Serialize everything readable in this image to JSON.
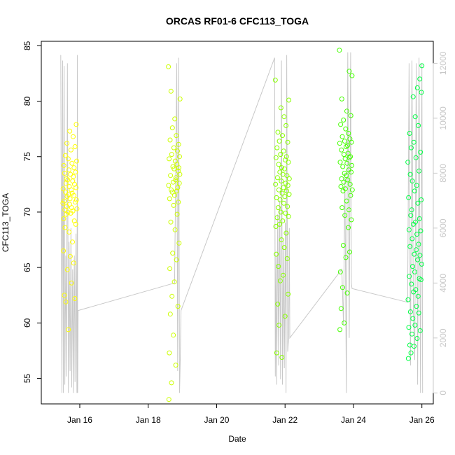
{
  "chart_data": {
    "type": "scatter",
    "title": "ORCAS RF01-6 CFC113_TOGA",
    "xlabel": "Date",
    "ylabel": "CFC113_TOGA",
    "xlim": [
      "2016-01-14T21:00",
      "2016-01-26T08:00"
    ],
    "ylim": [
      52.7,
      85.4
    ],
    "y2lim": [
      -400,
      12800
    ],
    "grid": false,
    "legend": "none",
    "x_ticks": [
      {
        "value": "2016-01-16",
        "label": "Jan 16"
      },
      {
        "value": "2016-01-18",
        "label": "Jan 18"
      },
      {
        "value": "2016-01-20",
        "label": "Jan 20"
      },
      {
        "value": "2016-01-22",
        "label": "Jan 22"
      },
      {
        "value": "2016-01-24",
        "label": "Jan 24"
      },
      {
        "value": "2016-01-26",
        "label": "Jan 26"
      }
    ],
    "y_ticks": [
      55,
      60,
      65,
      70,
      75,
      80,
      85
    ],
    "y2_ticks": [
      0,
      2000,
      4000,
      6000,
      8000,
      10000,
      12000
    ],
    "series": [
      {
        "color": "#ffff00",
        "x": [
          "2016-01-15T12:10",
          "2016-01-15T12:20",
          "2016-01-15T12:30",
          "2016-01-15T12:40",
          "2016-01-15T12:50",
          "2016-01-15T13:00",
          "2016-01-15T13:10",
          "2016-01-15T13:20",
          "2016-01-15T13:30",
          "2016-01-15T13:40",
          "2016-01-15T13:50",
          "2016-01-15T14:00",
          "2016-01-15T14:10",
          "2016-01-15T14:20",
          "2016-01-15T14:30",
          "2016-01-15T14:40",
          "2016-01-15T14:50",
          "2016-01-15T15:00",
          "2016-01-15T15:10",
          "2016-01-15T15:20",
          "2016-01-15T15:30",
          "2016-01-15T15:40",
          "2016-01-15T15:50",
          "2016-01-15T16:00",
          "2016-01-15T16:10",
          "2016-01-15T16:20",
          "2016-01-15T16:30",
          "2016-01-15T16:40",
          "2016-01-15T16:50",
          "2016-01-15T17:00",
          "2016-01-15T17:10",
          "2016-01-15T17:20",
          "2016-01-15T17:30",
          "2016-01-15T17:40",
          "2016-01-15T17:50",
          "2016-01-15T18:00",
          "2016-01-15T18:10",
          "2016-01-15T18:20",
          "2016-01-15T18:30",
          "2016-01-15T18:40",
          "2016-01-15T18:50",
          "2016-01-15T19:00",
          "2016-01-15T19:10",
          "2016-01-15T19:20",
          "2016-01-15T19:30",
          "2016-01-15T19:40",
          "2016-01-15T19:50",
          "2016-01-15T20:00",
          "2016-01-15T20:10",
          "2016-01-15T20:20",
          "2016-01-15T20:30",
          "2016-01-15T20:40",
          "2016-01-15T20:50",
          "2016-01-15T21:00",
          "2016-01-15T21:10",
          "2016-01-15T21:20",
          "2016-01-15T21:30",
          "2016-01-15T21:40",
          "2016-01-15T21:50",
          "2016-01-15T22:00"
        ],
        "y": [
          70.8,
          72.1,
          66.5,
          69.4,
          74.2,
          71.0,
          62.5,
          73.5,
          70.2,
          68.6,
          75.1,
          71.8,
          61.9,
          72.6,
          69.8,
          73.0,
          70.5,
          76.2,
          71.4,
          64.8,
          72.9,
          70.0,
          74.8,
          59.4,
          71.6,
          73.8,
          68.2,
          72.3,
          70.7,
          77.3,
          71.2,
          66.0,
          73.4,
          69.9,
          75.6,
          72.0,
          63.6,
          70.4,
          74.4,
          71.7,
          67.3,
          72.8,
          70.1,
          76.8,
          73.2,
          65.4,
          71.5,
          74.0,
          69.2,
          72.5,
          62.2,
          75.9,
          70.9,
          73.6,
          68.9,
          72.2,
          77.9,
          71.1,
          74.6,
          70.3
        ]
      },
      {
        "color": "#ccff00",
        "x": [
          "2016-01-18T14:10",
          "2016-01-18T14:20",
          "2016-01-18T14:30",
          "2016-01-18T14:40",
          "2016-01-18T14:50",
          "2016-01-18T15:00",
          "2016-01-18T15:10",
          "2016-01-18T15:20",
          "2016-01-18T15:30",
          "2016-01-18T15:40",
          "2016-01-18T15:50",
          "2016-01-18T16:00",
          "2016-01-18T16:10",
          "2016-01-18T16:20",
          "2016-01-18T16:30",
          "2016-01-18T16:40",
          "2016-01-18T16:50",
          "2016-01-18T17:00",
          "2016-01-18T17:10",
          "2016-01-18T17:20",
          "2016-01-18T17:30",
          "2016-01-18T17:40",
          "2016-01-18T17:50",
          "2016-01-18T18:00",
          "2016-01-18T18:10",
          "2016-01-18T18:20",
          "2016-01-18T18:30",
          "2016-01-18T18:40",
          "2016-01-18T18:50",
          "2016-01-18T19:00",
          "2016-01-18T19:10",
          "2016-01-18T19:20",
          "2016-01-18T19:30",
          "2016-01-18T19:40",
          "2016-01-18T19:50",
          "2016-01-18T20:00",
          "2016-01-18T20:10",
          "2016-01-18T20:20",
          "2016-01-18T20:30",
          "2016-01-18T20:40",
          "2016-01-18T20:50",
          "2016-01-18T21:00",
          "2016-01-18T21:10",
          "2016-01-18T21:20",
          "2016-01-18T21:30",
          "2016-01-18T21:40",
          "2016-01-18T21:50",
          "2016-01-18T22:00",
          "2016-01-18T22:10",
          "2016-01-18T22:20"
        ],
        "y": [
          83.1,
          72.4,
          53.1,
          74.8,
          57.3,
          71.2,
          64.9,
          76.5,
          60.8,
          73.3,
          69.1,
          80.9,
          72.0,
          54.6,
          75.2,
          62.4,
          71.8,
          77.6,
          66.3,
          74.1,
          72.7,
          58.9,
          70.6,
          75.8,
          73.9,
          63.7,
          71.5,
          78.4,
          68.4,
          74.6,
          72.9,
          56.2,
          73.1,
          76.9,
          65.7,
          71.9,
          74.3,
          69.8,
          75.5,
          72.2,
          61.5,
          73.7,
          70.9,
          76.1,
          74.0,
          67.2,
          72.6,
          75.0,
          73.4,
          80.2
        ]
      },
      {
        "color": "#88ff00",
        "x": [
          "2016-01-21T17:10",
          "2016-01-21T17:20",
          "2016-01-21T17:30",
          "2016-01-21T17:40",
          "2016-01-21T17:50",
          "2016-01-21T18:00",
          "2016-01-21T18:10",
          "2016-01-21T18:20",
          "2016-01-21T18:30",
          "2016-01-21T18:40",
          "2016-01-21T18:50",
          "2016-01-21T19:00",
          "2016-01-21T19:10",
          "2016-01-21T19:20",
          "2016-01-21T19:30",
          "2016-01-21T19:40",
          "2016-01-21T19:50",
          "2016-01-21T20:00",
          "2016-01-21T20:10",
          "2016-01-21T20:20",
          "2016-01-21T20:30",
          "2016-01-21T20:40",
          "2016-01-21T20:50",
          "2016-01-21T21:00",
          "2016-01-21T21:10",
          "2016-01-21T21:20",
          "2016-01-21T21:30",
          "2016-01-21T21:40",
          "2016-01-21T21:50",
          "2016-01-21T22:00",
          "2016-01-21T22:10",
          "2016-01-21T22:20",
          "2016-01-21T22:30",
          "2016-01-21T22:40",
          "2016-01-21T22:50",
          "2016-01-21T23:00",
          "2016-01-21T23:10",
          "2016-01-21T23:20",
          "2016-01-21T23:30",
          "2016-01-21T23:40",
          "2016-01-21T23:50",
          "2016-01-22T00:00",
          "2016-01-22T00:10",
          "2016-01-22T00:20",
          "2016-01-22T00:30",
          "2016-01-22T00:40",
          "2016-01-22T00:50",
          "2016-01-22T01:00",
          "2016-01-22T01:10",
          "2016-01-22T01:20",
          "2016-01-22T01:30",
          "2016-01-22T01:40",
          "2016-01-22T01:50",
          "2016-01-22T02:00",
          "2016-01-22T02:10",
          "2016-01-22T02:20",
          "2016-01-22T02:30",
          "2016-01-22T02:40",
          "2016-01-22T02:50",
          "2016-01-22T03:00"
        ],
        "y": [
          81.9,
          72.5,
          68.7,
          74.9,
          66.2,
          71.3,
          57.3,
          75.8,
          69.5,
          73.1,
          61.7,
          77.2,
          70.4,
          65.1,
          74.3,
          72.0,
          59.8,
          76.4,
          68.9,
          73.6,
          71.1,
          63.8,
          75.2,
          70.0,
          79.4,
          72.8,
          67.5,
          74.0,
          56.9,
          71.7,
          76.9,
          69.2,
          73.4,
          64.3,
          72.2,
          75.5,
          70.8,
          78.6,
          66.8,
          73.9,
          71.4,
          60.6,
          74.7,
          69.9,
          72.6,
          77.8,
          68.1,
          75.0,
          71.9,
          73.3,
          65.8,
          70.5,
          76.3,
          72.4,
          62.6,
          74.5,
          69.6,
          80.1,
          71.6,
          73.0
        ]
      },
      {
        "color": "#44ff00",
        "x": [
          "2016-01-23T14:10",
          "2016-01-23T14:20",
          "2016-01-23T14:30",
          "2016-01-23T14:40",
          "2016-01-23T14:50",
          "2016-01-23T15:00",
          "2016-01-23T15:10",
          "2016-01-23T15:20",
          "2016-01-23T15:30",
          "2016-01-23T15:40",
          "2016-01-23T15:50",
          "2016-01-23T16:00",
          "2016-01-23T16:10",
          "2016-01-23T16:20",
          "2016-01-23T16:30",
          "2016-01-23T16:40",
          "2016-01-23T16:50",
          "2016-01-23T17:00",
          "2016-01-23T17:10",
          "2016-01-23T17:20",
          "2016-01-23T17:30",
          "2016-01-23T17:40",
          "2016-01-23T17:50",
          "2016-01-23T18:00",
          "2016-01-23T18:10",
          "2016-01-23T18:20",
          "2016-01-23T18:30",
          "2016-01-23T18:40",
          "2016-01-23T18:50",
          "2016-01-23T19:00",
          "2016-01-23T19:10",
          "2016-01-23T19:20",
          "2016-01-23T19:30",
          "2016-01-23T19:40",
          "2016-01-23T19:50",
          "2016-01-23T20:00",
          "2016-01-23T20:10",
          "2016-01-23T20:20",
          "2016-01-23T20:30",
          "2016-01-23T20:40",
          "2016-01-23T20:50",
          "2016-01-23T21:00",
          "2016-01-23T21:10",
          "2016-01-23T21:20",
          "2016-01-23T21:30",
          "2016-01-23T21:40",
          "2016-01-23T21:50",
          "2016-01-23T22:00",
          "2016-01-23T22:10",
          "2016-01-23T22:20",
          "2016-01-23T22:30",
          "2016-01-23T22:40",
          "2016-01-23T22:50",
          "2016-01-23T23:00",
          "2016-01-23T23:10"
        ],
        "y": [
          84.6,
          76.2,
          59.4,
          74.5,
          64.6,
          77.9,
          72.3,
          61.3,
          75.6,
          73.0,
          80.2,
          70.4,
          76.8,
          63.2,
          74.1,
          71.9,
          67.0,
          78.3,
          72.7,
          75.2,
          60.0,
          73.5,
          76.4,
          69.7,
          74.8,
          72.1,
          77.5,
          65.9,
          75.9,
          73.3,
          71.0,
          79.1,
          74.4,
          62.7,
          76.0,
          72.9,
          75.3,
          68.6,
          77.1,
          73.8,
          70.2,
          82.7,
          74.9,
          66.4,
          76.6,
          72.5,
          75.0,
          71.5,
          78.7,
          73.6,
          69.3,
          76.3,
          74.2,
          82.3,
          72.0
        ]
      },
      {
        "color": "#00ff44",
        "x": [
          "2016-01-25T14:10",
          "2016-01-25T14:20",
          "2016-01-25T14:30",
          "2016-01-25T14:40",
          "2016-01-25T14:50",
          "2016-01-25T15:00",
          "2016-01-25T15:10",
          "2016-01-25T15:20",
          "2016-01-25T15:30",
          "2016-01-25T15:40",
          "2016-01-25T15:50",
          "2016-01-25T16:00",
          "2016-01-25T16:10",
          "2016-01-25T16:20",
          "2016-01-25T16:30",
          "2016-01-25T16:40",
          "2016-01-25T16:50",
          "2016-01-25T17:00",
          "2016-01-25T17:10",
          "2016-01-25T17:20",
          "2016-01-25T17:30",
          "2016-01-25T17:40",
          "2016-01-25T17:50",
          "2016-01-25T18:00",
          "2016-01-25T18:10",
          "2016-01-25T18:20",
          "2016-01-25T18:30",
          "2016-01-25T18:40",
          "2016-01-25T18:50",
          "2016-01-25T19:00",
          "2016-01-25T19:10",
          "2016-01-25T19:20",
          "2016-01-25T19:30",
          "2016-01-25T19:40",
          "2016-01-25T19:50",
          "2016-01-25T20:00",
          "2016-01-25T20:10",
          "2016-01-25T20:20",
          "2016-01-25T20:30",
          "2016-01-25T20:40",
          "2016-01-25T20:50",
          "2016-01-25T21:00",
          "2016-01-25T21:10",
          "2016-01-25T21:20",
          "2016-01-25T21:30",
          "2016-01-25T21:40",
          "2016-01-25T21:50",
          "2016-01-25T22:00",
          "2016-01-25T22:10",
          "2016-01-25T22:20",
          "2016-01-25T22:30",
          "2016-01-25T22:40",
          "2016-01-25T22:50",
          "2016-01-25T23:00",
          "2016-01-25T23:10",
          "2016-01-25T23:20",
          "2016-01-25T23:30",
          "2016-01-25T23:40",
          "2016-01-25T23:50",
          "2016-01-26T00:00"
        ],
        "y": [
          74.5,
          62.1,
          56.8,
          71.3,
          59.6,
          68.4,
          64.2,
          77.1,
          58.0,
          66.9,
          73.4,
          61.0,
          69.7,
          57.3,
          75.8,
          63.5,
          70.2,
          59.0,
          67.6,
          72.8,
          65.1,
          60.4,
          80.4,
          68.9,
          62.8,
          76.3,
          57.9,
          66.2,
          71.9,
          64.6,
          59.8,
          78.6,
          69.1,
          63.0,
          74.9,
          66.6,
          61.5,
          72.4,
          68.0,
          58.6,
          81.2,
          65.7,
          70.8,
          62.4,
          77.8,
          67.1,
          60.9,
          73.7,
          64.0,
          69.4,
          82.0,
          66.1,
          59.3,
          75.4,
          68.3,
          63.9,
          71.1,
          80.8,
          65.3,
          83.2
        ]
      }
    ],
    "altitude_trace": {
      "axis": "right",
      "color": "#c8c8c8",
      "x": [
        "2016-01-15T10:40",
        "2016-01-15T11:30",
        "2016-01-15T12:00",
        "2016-01-15T12:30",
        "2016-01-15T13:00",
        "2016-01-15T13:30",
        "2016-01-15T14:10",
        "2016-01-15T14:40",
        "2016-01-15T15:20",
        "2016-01-15T16:00",
        "2016-01-15T16:30",
        "2016-01-15T17:10",
        "2016-01-15T17:50",
        "2016-01-15T18:20",
        "2016-01-15T19:00",
        "2016-01-15T19:30",
        "2016-01-15T20:10",
        "2016-01-15T20:40",
        "2016-01-15T21:20",
        "2016-01-15T22:00",
        "2016-01-15T22:20",
        "2016-01-15T22:30",
        "2016-01-15T22:50",
        "2016-01-18T18:30",
        "2016-01-18T19:20",
        "2016-01-18T20:00",
        "2016-01-18T20:40",
        "2016-01-18T21:20",
        "2016-01-18T22:00",
        "2016-01-18T22:30",
        "2016-01-18T23:00",
        "2016-01-21T16:40",
        "2016-01-21T17:10",
        "2016-01-21T17:40",
        "2016-01-21T18:10",
        "2016-01-21T18:50",
        "2016-01-21T19:30",
        "2016-01-21T20:10",
        "2016-01-21T20:50",
        "2016-01-21T21:30",
        "2016-01-21T22:10",
        "2016-01-21T22:50",
        "2016-01-21T23:30",
        "2016-01-22T00:10",
        "2016-01-22T00:40",
        "2016-01-22T01:10",
        "2016-01-22T01:50",
        "2016-01-22T02:30",
        "2016-01-22T03:00",
        "2016-01-22T03:20",
        "2016-01-23T15:50",
        "2016-01-23T17:00",
        "2016-01-23T18:00",
        "2016-01-23T19:00",
        "2016-01-23T20:00",
        "2016-01-23T21:00",
        "2016-01-23T22:00",
        "2016-01-23T22:30",
        "2016-01-23T23:00",
        "2016-01-25T14:00",
        "2016-01-25T15:00",
        "2016-01-25T16:00",
        "2016-01-25T17:00",
        "2016-01-25T18:00",
        "2016-01-25T19:00",
        "2016-01-25T20:00",
        "2016-01-25T21:00",
        "2016-01-25T22:00",
        "2016-01-25T23:00",
        "2016-01-26T00:00",
        "2016-01-26T00:30"
      ],
      "y": [
        12300,
        0,
        12100,
        0,
        11900,
        300,
        5000,
        600,
        12000,
        0,
        5500,
        800,
        6000,
        200,
        4500,
        0,
        5000,
        400,
        5800,
        0,
        12300,
        0,
        3000,
        4000,
        8000,
        12000,
        800,
        12200,
        0,
        1200,
        3000,
        12200,
        600,
        5000,
        300,
        6500,
        1000,
        7000,
        500,
        12100,
        300,
        5500,
        900,
        6200,
        0,
        12300,
        1500,
        2000,
        6000,
        2000,
        4500,
        2500,
        8000,
        0,
        12400,
        2000,
        12400,
        4000,
        3800,
        3300,
        12000,
        1000,
        12100,
        3000,
        1200,
        12000,
        300,
        12200,
        0,
        12000,
        0
      ]
    }
  }
}
